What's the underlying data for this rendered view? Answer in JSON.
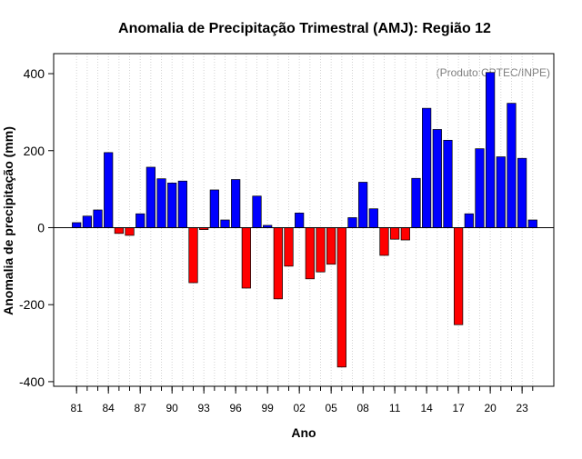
{
  "chart_data": {
    "type": "bar",
    "title": "Anomalia de Precipitação Trimestral (AMJ): Região 12",
    "xlabel": "Ano",
    "ylabel": "Anomalia de precipitação (mm)",
    "annotation": "(Produto:CPTEC/INPE)",
    "ylim": [
      -412,
      452
    ],
    "yticks": [
      -400,
      -200,
      0,
      200,
      400
    ],
    "x_tick_labels": [
      "81",
      "84",
      "87",
      "90",
      "93",
      "96",
      "99",
      "02",
      "05",
      "08",
      "11",
      "14",
      "17",
      "20",
      "23"
    ],
    "x_tick_years": [
      1981,
      1984,
      1987,
      1990,
      1993,
      1996,
      1999,
      2002,
      2005,
      2008,
      2011,
      2014,
      2017,
      2020,
      2023
    ],
    "positive_color": "#0000ff",
    "negative_color": "#ff0000",
    "grid": "vertical dotted",
    "years": [
      1981,
      1982,
      1983,
      1984,
      1985,
      1986,
      1987,
      1988,
      1989,
      1990,
      1991,
      1992,
      1993,
      1994,
      1995,
      1996,
      1997,
      1998,
      1999,
      2000,
      2001,
      2002,
      2003,
      2004,
      2005,
      2006,
      2007,
      2008,
      2009,
      2010,
      2011,
      2012,
      2013,
      2014,
      2015,
      2016,
      2017,
      2018,
      2019,
      2020,
      2021,
      2022,
      2023,
      2024
    ],
    "values": [
      13,
      30,
      46,
      195,
      -15,
      -20,
      36,
      157,
      127,
      116,
      121,
      -143,
      -5,
      98,
      20,
      125,
      -157,
      82,
      6,
      -185,
      -100,
      38,
      -133,
      -115,
      -95,
      -362,
      26,
      118,
      49,
      -72,
      -30,
      -32,
      128,
      310,
      255,
      227,
      -252,
      36,
      205,
      403,
      184,
      323,
      180,
      20
    ]
  }
}
